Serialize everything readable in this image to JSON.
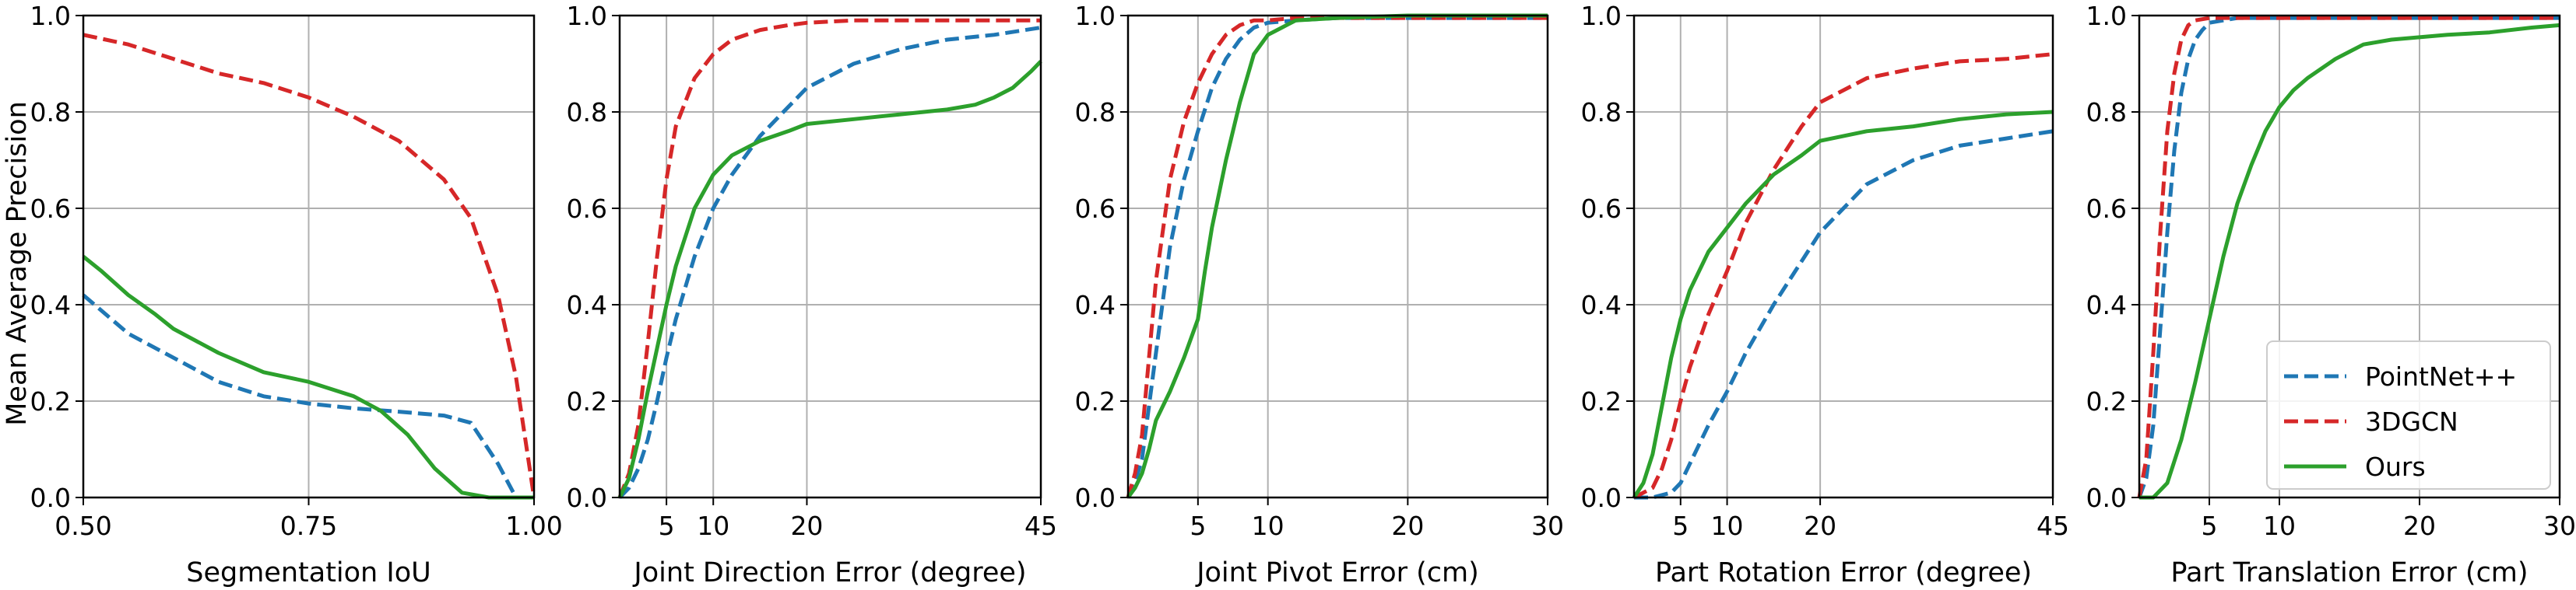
{
  "figure": {
    "ylabel": "Mean Average Precision",
    "legend": {
      "placement": "lower-right of last panel",
      "entries": [
        {
          "name": "PointNet++",
          "color": "#1f77b4",
          "style": "dashed"
        },
        {
          "name": "3DGCN",
          "color": "#d62728",
          "style": "dashed"
        },
        {
          "name": "Ours",
          "color": "#2ca02c",
          "style": "solid"
        }
      ]
    }
  },
  "chart_data": [
    {
      "type": "line",
      "xlabel": "Segmentation IoU",
      "ylabel": "Mean Average Precision",
      "xlim": [
        0.5,
        1.0
      ],
      "ylim": [
        0,
        1
      ],
      "xticks": [
        0.5,
        0.75,
        1.0
      ],
      "xtick_labels": [
        "0.50",
        "0.75",
        "1.00"
      ],
      "yticks": [
        0,
        0.2,
        0.4,
        0.6,
        0.8,
        1.0
      ],
      "ytick_labels": [
        "0.0",
        "0.2",
        "0.4",
        "0.6",
        "0.8",
        "1.0"
      ],
      "grid": true,
      "series": [
        {
          "name": "PointNet++",
          "x": [
            0.5,
            0.55,
            0.6,
            0.65,
            0.7,
            0.75,
            0.8,
            0.85,
            0.9,
            0.93,
            0.96,
            0.98,
            1.0
          ],
          "y": [
            0.42,
            0.34,
            0.29,
            0.24,
            0.21,
            0.195,
            0.185,
            0.178,
            0.17,
            0.155,
            0.07,
            0.0,
            0.0
          ]
        },
        {
          "name": "3DGCN",
          "x": [
            0.5,
            0.55,
            0.6,
            0.65,
            0.7,
            0.75,
            0.8,
            0.85,
            0.9,
            0.93,
            0.96,
            0.98,
            1.0
          ],
          "y": [
            0.96,
            0.94,
            0.91,
            0.88,
            0.86,
            0.83,
            0.79,
            0.74,
            0.66,
            0.58,
            0.42,
            0.25,
            0.0
          ]
        },
        {
          "name": "Ours",
          "x": [
            0.5,
            0.52,
            0.55,
            0.58,
            0.6,
            0.65,
            0.7,
            0.75,
            0.8,
            0.83,
            0.86,
            0.89,
            0.92,
            0.95,
            1.0
          ],
          "y": [
            0.5,
            0.47,
            0.42,
            0.38,
            0.35,
            0.3,
            0.26,
            0.24,
            0.21,
            0.18,
            0.13,
            0.06,
            0.01,
            0.0,
            0.0
          ]
        }
      ]
    },
    {
      "type": "line",
      "xlabel": "Joint Direction Error (degree)",
      "xlim": [
        0,
        45
      ],
      "ylim": [
        0,
        1
      ],
      "xticks": [
        5,
        10,
        20,
        45
      ],
      "xtick_labels": [
        "5",
        "10",
        "20",
        "45"
      ],
      "yticks": [
        0,
        0.2,
        0.4,
        0.6,
        0.8,
        1.0
      ],
      "ytick_labels": [
        "0.0",
        "0.2",
        "0.4",
        "0.6",
        "0.8",
        "1.0"
      ],
      "grid": true,
      "series": [
        {
          "name": "PointNet++",
          "x": [
            0,
            1,
            2,
            3,
            4,
            5,
            6,
            8,
            10,
            12,
            15,
            18,
            20,
            25,
            30,
            35,
            40,
            45
          ],
          "y": [
            0,
            0.02,
            0.06,
            0.12,
            0.2,
            0.29,
            0.37,
            0.5,
            0.6,
            0.67,
            0.75,
            0.81,
            0.85,
            0.9,
            0.93,
            0.95,
            0.96,
            0.975
          ]
        },
        {
          "name": "3DGCN",
          "x": [
            0,
            1,
            2,
            3,
            4,
            5,
            6,
            8,
            10,
            12,
            15,
            18,
            20,
            25,
            30,
            35,
            40,
            45
          ],
          "y": [
            0,
            0.05,
            0.15,
            0.32,
            0.5,
            0.66,
            0.77,
            0.87,
            0.92,
            0.95,
            0.97,
            0.98,
            0.985,
            0.99,
            0.99,
            0.99,
            0.99,
            0.99
          ]
        },
        {
          "name": "Ours",
          "x": [
            0,
            1,
            2,
            3,
            4,
            5,
            6,
            8,
            10,
            12,
            15,
            18,
            20,
            25,
            30,
            35,
            38,
            40,
            42,
            44,
            45
          ],
          "y": [
            0,
            0.04,
            0.12,
            0.22,
            0.31,
            0.4,
            0.48,
            0.6,
            0.67,
            0.71,
            0.74,
            0.76,
            0.775,
            0.785,
            0.795,
            0.805,
            0.815,
            0.83,
            0.85,
            0.885,
            0.905
          ]
        }
      ]
    },
    {
      "type": "line",
      "xlabel": "Joint Pivot Error (cm)",
      "xlim": [
        0,
        30
      ],
      "ylim": [
        0,
        1
      ],
      "xticks": [
        5,
        10,
        20,
        30
      ],
      "xtick_labels": [
        "5",
        "10",
        "20",
        "30"
      ],
      "yticks": [
        0,
        0.2,
        0.4,
        0.6,
        0.8,
        1.0
      ],
      "ytick_labels": [
        "0.0",
        "0.2",
        "0.4",
        "0.6",
        "0.8",
        "1.0"
      ],
      "grid": true,
      "series": [
        {
          "name": "PointNet++",
          "x": [
            0,
            0.5,
            1,
            2,
            3,
            4,
            5,
            6,
            7,
            8,
            9,
            10,
            12,
            15,
            20,
            30
          ],
          "y": [
            0,
            0.03,
            0.08,
            0.3,
            0.52,
            0.66,
            0.76,
            0.85,
            0.91,
            0.95,
            0.975,
            0.985,
            0.99,
            0.995,
            0.995,
            0.995
          ]
        },
        {
          "name": "3DGCN",
          "x": [
            0,
            0.5,
            1,
            2,
            3,
            4,
            5,
            6,
            7,
            8,
            9,
            10,
            12,
            15,
            20,
            30
          ],
          "y": [
            0,
            0.05,
            0.13,
            0.45,
            0.66,
            0.78,
            0.86,
            0.92,
            0.96,
            0.98,
            0.99,
            0.99,
            0.995,
            0.995,
            0.995,
            0.995
          ]
        },
        {
          "name": "Ours",
          "x": [
            0,
            0.5,
            1,
            1.5,
            2,
            3,
            4,
            5,
            5.5,
            6,
            7,
            8,
            9,
            10,
            11,
            12,
            15,
            20,
            30
          ],
          "y": [
            0,
            0.02,
            0.05,
            0.1,
            0.16,
            0.22,
            0.29,
            0.37,
            0.47,
            0.56,
            0.7,
            0.82,
            0.92,
            0.96,
            0.975,
            0.99,
            0.995,
            1.0,
            1.0
          ]
        }
      ]
    },
    {
      "type": "line",
      "xlabel": "Part Rotation Error (degree)",
      "xlim": [
        0,
        45
      ],
      "ylim": [
        0,
        1
      ],
      "xticks": [
        5,
        10,
        20,
        45
      ],
      "xtick_labels": [
        "5",
        "10",
        "20",
        "45"
      ],
      "yticks": [
        0,
        0.2,
        0.4,
        0.6,
        0.8,
        1.0
      ],
      "ytick_labels": [
        "0.0",
        "0.2",
        "0.4",
        "0.6",
        "0.8",
        "1.0"
      ],
      "grid": true,
      "series": [
        {
          "name": "PointNet++",
          "x": [
            0,
            2,
            4,
            5,
            6,
            8,
            10,
            12,
            15,
            18,
            20,
            25,
            30,
            35,
            40,
            45
          ],
          "y": [
            0,
            0.0,
            0.01,
            0.03,
            0.07,
            0.15,
            0.22,
            0.3,
            0.4,
            0.49,
            0.55,
            0.65,
            0.7,
            0.73,
            0.745,
            0.76
          ]
        },
        {
          "name": "3DGCN",
          "x": [
            0,
            2,
            3,
            4,
            5,
            6,
            8,
            10,
            12,
            15,
            18,
            20,
            25,
            30,
            35,
            40,
            45
          ],
          "y": [
            0,
            0.02,
            0.06,
            0.12,
            0.2,
            0.27,
            0.38,
            0.47,
            0.57,
            0.68,
            0.77,
            0.82,
            0.87,
            0.89,
            0.905,
            0.91,
            0.92
          ]
        },
        {
          "name": "Ours",
          "x": [
            0,
            1,
            2,
            3,
            4,
            5,
            6,
            8,
            10,
            12,
            15,
            18,
            20,
            25,
            30,
            35,
            40,
            45
          ],
          "y": [
            0,
            0.03,
            0.09,
            0.19,
            0.29,
            0.37,
            0.43,
            0.51,
            0.56,
            0.61,
            0.67,
            0.71,
            0.74,
            0.76,
            0.77,
            0.785,
            0.795,
            0.8
          ]
        }
      ]
    },
    {
      "type": "line",
      "xlabel": "Part Translation Error (cm)",
      "xlim": [
        0,
        30
      ],
      "ylim": [
        0,
        1
      ],
      "xticks": [
        5,
        10,
        20,
        30
      ],
      "xtick_labels": [
        "5",
        "10",
        "20",
        "30"
      ],
      "yticks": [
        0,
        0.2,
        0.4,
        0.6,
        0.8,
        1.0
      ],
      "ytick_labels": [
        "0.0",
        "0.2",
        "0.4",
        "0.6",
        "0.8",
        "1.0"
      ],
      "grid": true,
      "series": [
        {
          "name": "PointNet++",
          "x": [
            0,
            0.5,
            1,
            1.5,
            2,
            2.5,
            3,
            3.5,
            4,
            4.5,
            5,
            6,
            7,
            8,
            10,
            15,
            20,
            30
          ],
          "y": [
            0,
            0.04,
            0.15,
            0.35,
            0.55,
            0.72,
            0.84,
            0.91,
            0.95,
            0.97,
            0.985,
            0.99,
            0.995,
            0.995,
            0.995,
            0.995,
            0.995,
            0.995
          ]
        },
        {
          "name": "3DGCN",
          "x": [
            0,
            0.5,
            1,
            1.5,
            2,
            2.5,
            3,
            3.5,
            4,
            5,
            6,
            8,
            10,
            15,
            20,
            30
          ],
          "y": [
            0,
            0.08,
            0.3,
            0.55,
            0.76,
            0.88,
            0.95,
            0.98,
            0.99,
            0.995,
            0.995,
            0.995,
            0.995,
            0.995,
            0.995,
            0.995
          ]
        },
        {
          "name": "Ours",
          "x": [
            0,
            1,
            2,
            3,
            4,
            5,
            6,
            7,
            8,
            9,
            10,
            11,
            12,
            13,
            14,
            15,
            16,
            18,
            20,
            22,
            25,
            28,
            30
          ],
          "y": [
            0,
            0.0,
            0.03,
            0.12,
            0.24,
            0.37,
            0.5,
            0.61,
            0.69,
            0.76,
            0.81,
            0.845,
            0.87,
            0.89,
            0.91,
            0.925,
            0.94,
            0.95,
            0.955,
            0.96,
            0.965,
            0.975,
            0.98
          ]
        }
      ]
    }
  ]
}
